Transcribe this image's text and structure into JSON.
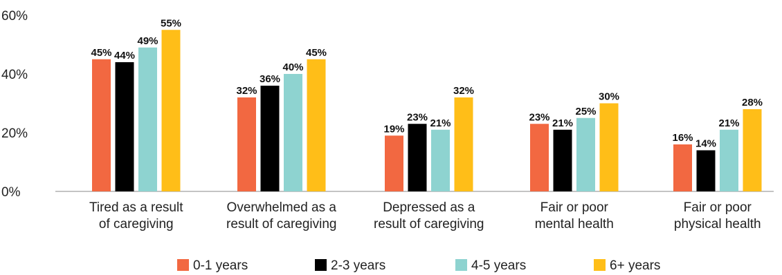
{
  "chart_data": {
    "type": "bar",
    "title": "",
    "xlabel": "",
    "ylabel": "",
    "ylim": [
      0,
      60
    ],
    "yticks": [
      "0%",
      "20%",
      "40%",
      "60%"
    ],
    "grid": false,
    "legend_position": "bottom",
    "categories": [
      [
        "Tired as a result",
        "of caregiving"
      ],
      [
        "Overwhelmed as a",
        "result of caregiving"
      ],
      [
        "Depressed as a",
        "result of caregiving"
      ],
      [
        "Fair or poor",
        "mental health"
      ],
      [
        "Fair or poor",
        "physical health"
      ]
    ],
    "series": [
      {
        "name": "0-1 years",
        "color": "#F26841",
        "values": [
          45,
          32,
          19,
          23,
          16
        ],
        "labels": [
          "45%",
          "32%",
          "19%",
          "23%",
          "16%"
        ]
      },
      {
        "name": "2-3 years",
        "color": "#000000",
        "values": [
          44,
          36,
          23,
          21,
          14
        ],
        "labels": [
          "44%",
          "36%",
          "23%",
          "21%",
          "14%"
        ]
      },
      {
        "name": "4-5 years",
        "color": "#8ED3D0",
        "values": [
          49,
          40,
          21,
          25,
          21
        ],
        "labels": [
          "49%",
          "40%",
          "21%",
          "25%",
          "21%"
        ]
      },
      {
        "name": "6+ years",
        "color": "#FFBE18",
        "values": [
          55,
          45,
          32,
          30,
          28
        ],
        "labels": [
          "55%",
          "45%",
          "32%",
          "30%",
          "28%"
        ]
      }
    ]
  }
}
